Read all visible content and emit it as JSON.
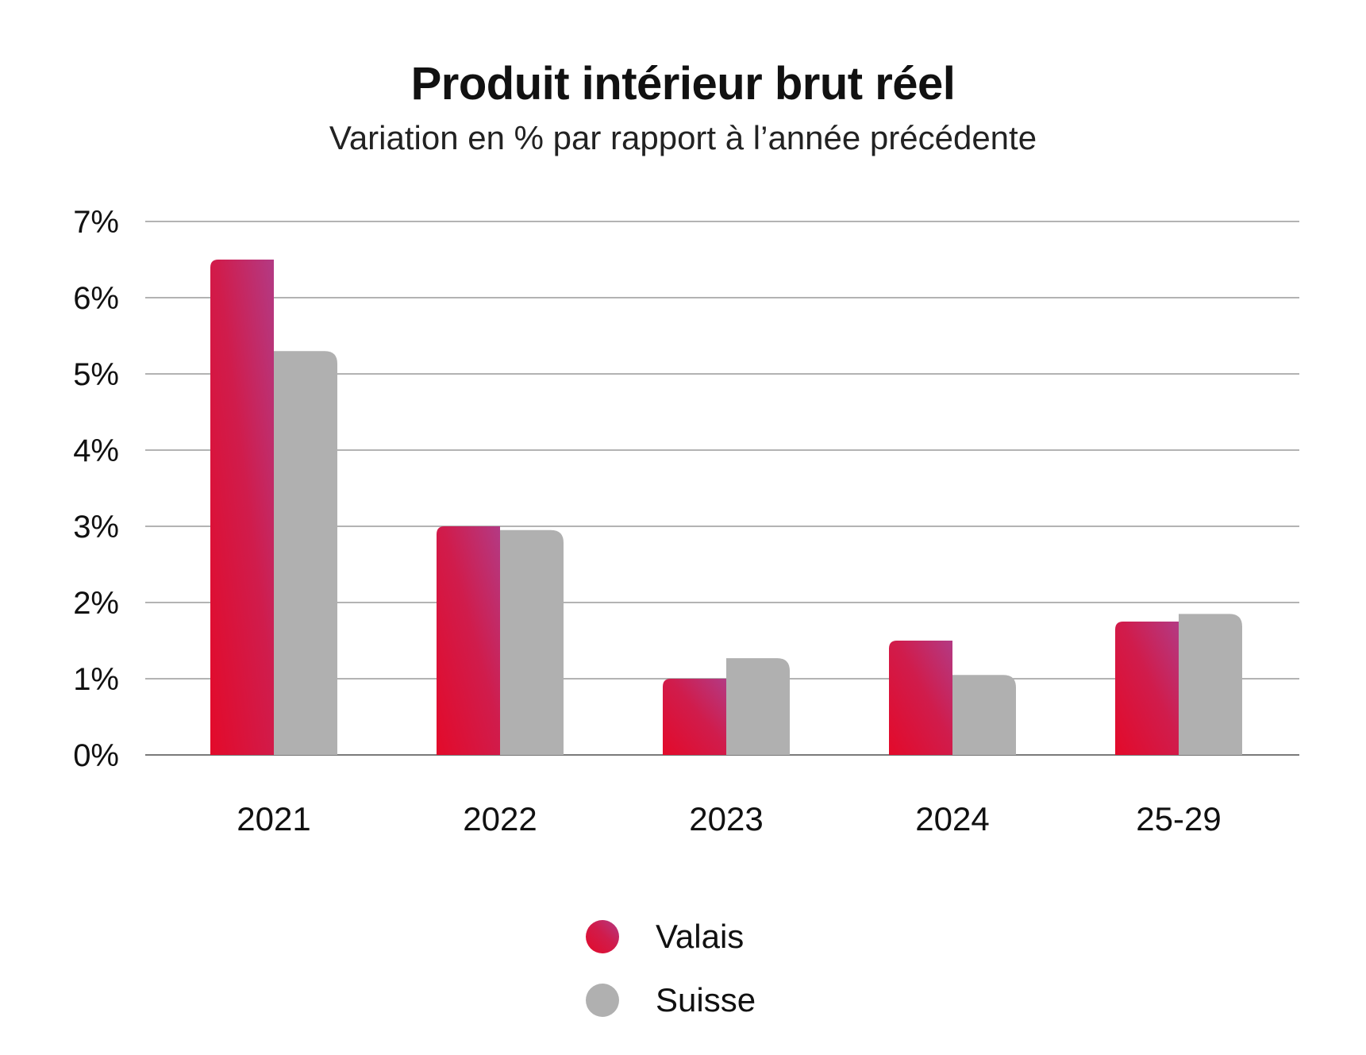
{
  "chart_data": {
    "type": "bar",
    "title": "Produit intérieur brut réel",
    "subtitle": "Variation en % par rapport à l’année précédente",
    "categories": [
      "2021",
      "2022",
      "2023",
      "2024",
      "25-29"
    ],
    "series": [
      {
        "name": "Valais",
        "values": [
          6.5,
          3.0,
          1.0,
          1.5,
          1.75
        ],
        "color": "#e30a2a",
        "color_top": "#b33a84"
      },
      {
        "name": "Suisse",
        "values": [
          5.3,
          2.95,
          1.27,
          1.05,
          1.85
        ],
        "color": "#b0b0b0"
      }
    ],
    "ylim": [
      0,
      7
    ],
    "yticks": [
      "0%",
      "1%",
      "2%",
      "3%",
      "4%",
      "5%",
      "6%",
      "7%"
    ],
    "grid": true,
    "legend_position": "bottom-center"
  }
}
